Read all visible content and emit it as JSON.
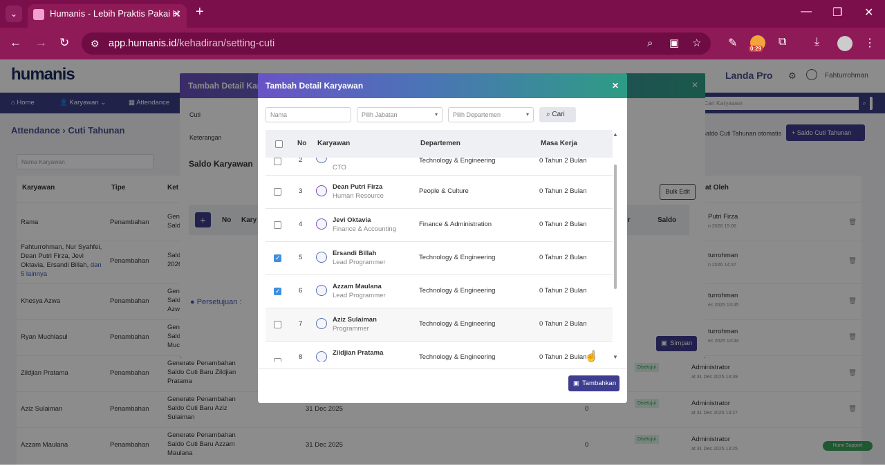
{
  "browser": {
    "tab_title": "Humanis - Lebih Praktis Pakai H",
    "url_host": "app.humanis.id",
    "url_path": "/kehadiran/setting-cuti",
    "rec_time": "0:29"
  },
  "app": {
    "logo": "humanis",
    "company": "Landa Pro",
    "user": "Fahturrohman",
    "menu": [
      "Home",
      "Karyawan",
      "Attendance"
    ],
    "breadcrumb": "Attendance › Cuti Tahunan",
    "search_karyawan": "Cari Karyawan",
    "btn_saldo_otomatis": "Saldo Cuti Tahunan otomatis",
    "btn_saldo_cuti": "Saldo Cuti Tahunan",
    "filter_nama": "Nama Karyawan",
    "table_headers": [
      "Karyawan",
      "Tipe",
      "Ket",
      "at Oleh"
    ],
    "rows": [
      {
        "name": "Rama",
        "type": "Penambahan",
        "ket": "Gen Sald",
        "oleh": "Putri Firza",
        "date": "n 2026 15:06"
      },
      {
        "name": "Fahturrohman, Nur Syahfei, Dean Putri Firza, Jevi Oktavia, Ersandi Billah,",
        "more": "dan 5 lainnya",
        "type": "Penambahan",
        "ket": "Sald 2026",
        "oleh": "turrohman",
        "date": "n 2026 14:37"
      },
      {
        "name": "Khesya Azwa",
        "type": "Penambahan",
        "ket": "Gen Sald Azw",
        "oleh": "turrohman",
        "date": "ec 2025 13:45"
      },
      {
        "name": "Ryan Muchlasul",
        "type": "Penambahan",
        "ket": "Gen Sald Muc",
        "oleh": "turrohman",
        "date": "ec 2025 13:44"
      },
      {
        "name": "Zildjian Pratama",
        "type": "Penambahan",
        "ket": "Generate Penambahan Saldo Cuti Baru Zildjian Pratama",
        "status": "Disetujui",
        "oleh": "Administrator",
        "date": "at 31 Dec 2025 13:39"
      },
      {
        "name": "Aziz Sulaiman",
        "type": "Penambahan",
        "ket": "Generate Penambahan Saldo Cuti Baru Aziz Sulaiman",
        "tgl": "31 Dec 2025",
        "val": "0",
        "status": "Disetujui",
        "oleh": "Administrator",
        "date": "at 31 Dec 2025 13:27"
      },
      {
        "name": "Azzam Maulana",
        "type": "Penambahan",
        "ket": "Generate Penambahan Saldo Cuti Baru Azzam Maulana",
        "tgl": "31 Dec 2025",
        "val": "0",
        "status": "Disetujui",
        "oleh": "Administrator",
        "date": "at 31 Dec 2025 13:25"
      }
    ]
  },
  "back_modal": {
    "title": "Tambah Detail Kar",
    "cuti_label": "Cuti",
    "keterangan_label": "Keterangan",
    "saldo_title": "Saldo Karyawan",
    "bulk_edit": "Bulk Edit",
    "col_no": "No",
    "col_kary": "Kary",
    "col_ir": "ir",
    "col_saldo": "Saldo",
    "persetujuan": "Persetujuan :",
    "simpan": "Simpan"
  },
  "modal": {
    "title": "Tambah Detail Karyawan",
    "filters": {
      "nama": "Nama",
      "jabatan": "Pilih Jabatan",
      "departemen": "Pilih Departemen",
      "cari": "Cari"
    },
    "headers": {
      "no": "No",
      "karyawan": "Karyawan",
      "departemen": "Departemen",
      "masa_kerja": "Masa Kerja"
    },
    "partial_row": {
      "no": "2",
      "jabatan": "CTO",
      "dept": "Technology & Engineering",
      "masa": "0 Tahun 2 Bulan"
    },
    "rows": [
      {
        "no": "3",
        "name": "Dean Putri Firza",
        "jabatan": "Human Resource",
        "dept": "People & Culture",
        "masa": "0 Tahun 2 Bulan",
        "checked": false,
        "female": true
      },
      {
        "no": "4",
        "name": "Jevi Oktavia",
        "jabatan": "Finance & Accounting",
        "dept": "Finance & Administration",
        "masa": "0 Tahun 2 Bulan",
        "checked": false,
        "female": true
      },
      {
        "no": "5",
        "name": "Ersandi Billah",
        "jabatan": "Lead Programmer",
        "dept": "Technology & Engineering",
        "masa": "0 Tahun 2 Bulan",
        "checked": true,
        "female": false
      },
      {
        "no": "6",
        "name": "Azzam Maulana",
        "jabatan": "Lead Programmer",
        "dept": "Technology & Engineering",
        "masa": "0 Tahun 2 Bulan",
        "checked": true,
        "female": false
      },
      {
        "no": "7",
        "name": "Aziz Sulaiman",
        "jabatan": "Programmer",
        "dept": "Technology & Engineering",
        "masa": "0 Tahun 2 Bulan",
        "checked": false,
        "female": false
      },
      {
        "no": "8",
        "name": "Zildjian Pratama",
        "jabatan": "",
        "dept": "Technology & Engineering",
        "masa": "0 Tahun 2 Bulan",
        "checked": false,
        "female": false
      }
    ],
    "tambahkan": "Tambahkan"
  },
  "support": "Humi Support"
}
